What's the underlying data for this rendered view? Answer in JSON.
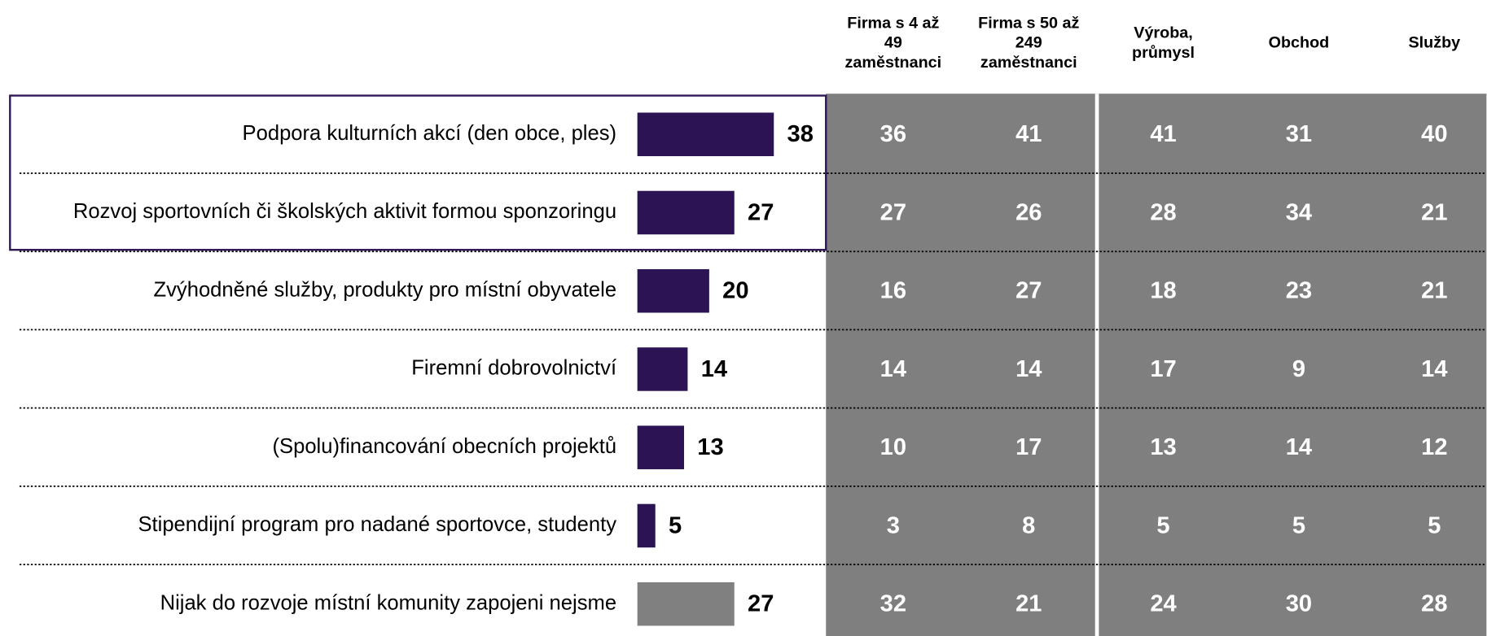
{
  "chart_data": {
    "type": "bar",
    "categories": [
      "Podpora kulturních akcí (den obce, ples)",
      "Rozvoj sportovních či školských aktivit formou sponzoringu",
      "Zvýhodněné služby, produkty pro místní obyvatele",
      "Firemní dobrovolnictví",
      "(Spolu)financování obecních projektů",
      "Stipendijní program pro nadané sportovce, studenty",
      "Nijak do rozvoje místní komunity zapojeni nejsme"
    ],
    "values": [
      38,
      27,
      20,
      14,
      13,
      5,
      27
    ],
    "colors": [
      "#2b1354",
      "#2b1354",
      "#2b1354",
      "#2b1354",
      "#2b1354",
      "#2b1354",
      "#808080"
    ]
  },
  "table": {
    "columns": [
      [
        "Firma s 4 až",
        "49",
        "zaměstnanci"
      ],
      [
        "Firma s 50 až",
        "249",
        "zaměstnanci"
      ],
      [
        "Výroba,",
        "průmysl"
      ],
      [
        "Obchod"
      ],
      [
        "Služby"
      ]
    ],
    "rows": [
      [
        36,
        41,
        41,
        31,
        40
      ],
      [
        27,
        26,
        28,
        34,
        21
      ],
      [
        16,
        27,
        18,
        23,
        21
      ],
      [
        14,
        14,
        17,
        9,
        14
      ],
      [
        10,
        17,
        13,
        14,
        12
      ],
      [
        3,
        8,
        5,
        5,
        5
      ],
      [
        32,
        21,
        24,
        30,
        28
      ]
    ]
  }
}
